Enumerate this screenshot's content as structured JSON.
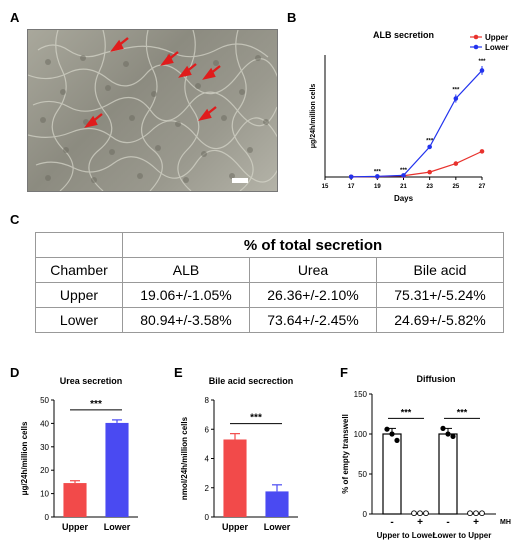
{
  "panels": {
    "a": "A",
    "b": "B",
    "c": "C",
    "d": "D",
    "e": "E",
    "f": "F"
  },
  "chart_data": [
    {
      "panel": "B",
      "type": "line",
      "title": "ALB secretion",
      "xlabel": "Days",
      "ylabel": "μg/24h/million cells",
      "x": [
        15,
        17,
        19,
        21,
        23,
        25,
        27
      ],
      "xlim": [
        15,
        27
      ],
      "ylim": [
        0,
        30
      ],
      "series": [
        {
          "name": "Upper",
          "color": "#e8322d",
          "x": [
            17,
            19,
            21,
            23,
            25,
            27
          ],
          "values": [
            0.05,
            0.1,
            0.3,
            1.2,
            3.3,
            6.3
          ],
          "errors": [
            0,
            0,
            0,
            0.2,
            0.3,
            0.4
          ]
        },
        {
          "name": "Lower",
          "color": "#2233ee",
          "x": [
            17,
            19,
            21,
            23,
            25,
            27
          ],
          "values": [
            0.05,
            0.15,
            0.4,
            7.4,
            19.3,
            26.2
          ],
          "errors": [
            0,
            0,
            0.1,
            0.3,
            1.0,
            1.1
          ]
        }
      ],
      "significance": [
        {
          "x": 19,
          "label": "***"
        },
        {
          "x": 21,
          "label": "***"
        },
        {
          "x": 23,
          "label": "***"
        },
        {
          "x": 25,
          "label": "***"
        },
        {
          "x": 27,
          "label": "***"
        }
      ],
      "legend": "top-right"
    },
    {
      "panel": "D",
      "type": "bar",
      "title": "Urea secretion",
      "ylabel": "μg/24h/million cells",
      "categories": [
        "Upper",
        "Lower"
      ],
      "values": [
        14.5,
        40.2
      ],
      "errors": [
        1.0,
        1.3
      ],
      "colors": [
        "#f24a4a",
        "#4a4af2"
      ],
      "ylim": [
        0,
        50
      ],
      "yticks": [
        0,
        10,
        20,
        30,
        40,
        50
      ],
      "significance": "***"
    },
    {
      "panel": "E",
      "type": "bar",
      "title": "Bile acid secrection",
      "ylabel": "nmol/24h/million cells",
      "categories": [
        "Upper",
        "Lower"
      ],
      "values": [
        5.3,
        1.75
      ],
      "errors": [
        0.4,
        0.45
      ],
      "colors": [
        "#f24a4a",
        "#4a4af2"
      ],
      "ylim": [
        0,
        8
      ],
      "yticks": [
        0,
        2,
        4,
        6,
        8
      ],
      "significance": "***"
    },
    {
      "panel": "F",
      "type": "bar",
      "title": "Diffusion",
      "ylabel": "% of empty transwell",
      "groups": [
        "Upper to Lower",
        "Lower to Upper"
      ],
      "mh_labels": [
        "-",
        "+",
        "-",
        "+"
      ],
      "mh_label": "MH",
      "values": [
        100,
        0,
        100,
        0
      ],
      "errors": [
        7,
        0,
        7,
        0
      ],
      "points": [
        [
          106,
          100,
          92
        ],
        [
          1,
          1,
          1
        ],
        [
          107,
          100,
          97
        ],
        [
          1,
          1,
          1
        ]
      ],
      "ylim": [
        0,
        150
      ],
      "yticks": [
        0,
        50,
        100,
        150
      ],
      "significance": [
        "***",
        "***"
      ]
    }
  ],
  "table": {
    "title": "% of total secretion",
    "columns": [
      "Chamber",
      "ALB",
      "Urea",
      "Bile acid"
    ],
    "rows": [
      [
        "Upper",
        "19.06+/-1.05%",
        "26.36+/-2.10%",
        "75.31+/-5.24%"
      ],
      [
        "Lower",
        "80.94+/-3.58%",
        "73.64+/-2.45%",
        "24.69+/-5.82%"
      ]
    ]
  }
}
